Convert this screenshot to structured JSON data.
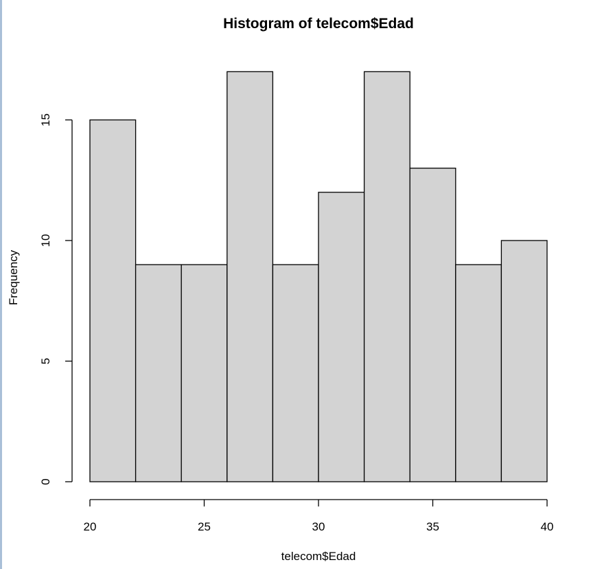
{
  "chart_data": {
    "type": "histogram",
    "title": "Histogram of telecom$Edad",
    "xlabel": "telecom$Edad",
    "ylabel": "Frequency",
    "bins": [
      {
        "from": 20,
        "to": 22,
        "count": 15
      },
      {
        "from": 22,
        "to": 24,
        "count": 9
      },
      {
        "from": 24,
        "to": 26,
        "count": 9
      },
      {
        "from": 26,
        "to": 28,
        "count": 17
      },
      {
        "from": 28,
        "to": 30,
        "count": 9
      },
      {
        "from": 30,
        "to": 32,
        "count": 12
      },
      {
        "from": 32,
        "to": 34,
        "count": 17
      },
      {
        "from": 34,
        "to": 36,
        "count": 13
      },
      {
        "from": 36,
        "to": 38,
        "count": 9
      },
      {
        "from": 38,
        "to": 40,
        "count": 10
      }
    ],
    "xticks": [
      20,
      25,
      30,
      35,
      40
    ],
    "yticks": [
      0,
      5,
      10,
      15
    ],
    "xlim": [
      20,
      40
    ],
    "grid": false,
    "bar_color": "#d3d3d3",
    "border_color": "#000000"
  }
}
